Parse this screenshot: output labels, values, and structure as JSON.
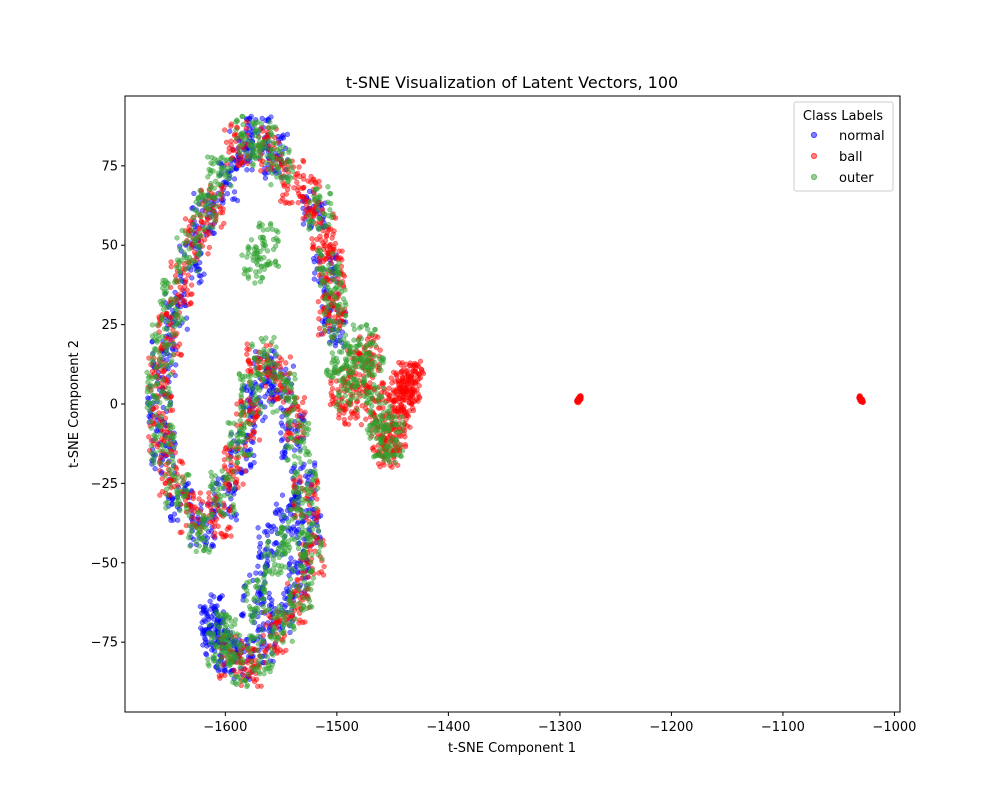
{
  "chart_data": {
    "type": "scatter",
    "title": "t-SNE Visualization of Latent Vectors, 100",
    "xlabel": "t-SNE Component 1",
    "ylabel": "t-SNE Component 2",
    "xlim": [
      -1690,
      -995
    ],
    "ylim": [
      -97,
      97
    ],
    "x_ticks": [
      -1600,
      -1500,
      -1400,
      -1300,
      -1200,
      -1100,
      -1000
    ],
    "y_ticks": [
      -75,
      -50,
      -25,
      0,
      25,
      50,
      75
    ],
    "grid": false,
    "legend": {
      "title": "Class Labels",
      "placement": "top-right"
    },
    "series": [
      {
        "name": "normal",
        "color": "#0000ff",
        "description_points": [
          [
            -1585,
            80
          ],
          [
            -1570,
            84
          ],
          [
            -1555,
            78
          ],
          [
            -1600,
            70
          ],
          [
            -1620,
            60
          ],
          [
            -1630,
            45
          ],
          [
            -1645,
            30
          ],
          [
            -1655,
            15
          ],
          [
            -1660,
            0
          ],
          [
            -1655,
            -15
          ],
          [
            -1640,
            -30
          ],
          [
            -1620,
            -38
          ],
          [
            -1600,
            -30
          ],
          [
            -1585,
            -15
          ],
          [
            -1575,
            0
          ],
          [
            -1565,
            10
          ],
          [
            -1550,
            5
          ],
          [
            -1540,
            -10
          ],
          [
            -1530,
            -25
          ],
          [
            -1525,
            -40
          ],
          [
            -1535,
            -55
          ],
          [
            -1550,
            -65
          ],
          [
            -1565,
            -75
          ],
          [
            -1585,
            -80
          ],
          [
            -1600,
            -78
          ],
          [
            -1610,
            -70
          ],
          [
            -1612,
            -67
          ],
          [
            -1608,
            -72
          ],
          [
            -1520,
            60
          ],
          [
            -1510,
            40
          ],
          [
            -1503,
            25
          ],
          [
            -1560,
            -45
          ],
          [
            -1545,
            -35
          ],
          [
            -1575,
            -60
          ]
        ]
      },
      {
        "name": "ball",
        "color": "#ff0000",
        "description_points": [
          [
            -1590,
            82
          ],
          [
            -1560,
            80
          ],
          [
            -1540,
            70
          ],
          [
            -1525,
            65
          ],
          [
            -1512,
            55
          ],
          [
            -1505,
            45
          ],
          [
            -1503,
            35
          ],
          [
            -1506,
            28
          ],
          [
            -1612,
            62
          ],
          [
            -1625,
            52
          ],
          [
            -1640,
            38
          ],
          [
            -1650,
            22
          ],
          [
            -1658,
            8
          ],
          [
            -1658,
            -8
          ],
          [
            -1648,
            -22
          ],
          [
            -1630,
            -35
          ],
          [
            -1605,
            -35
          ],
          [
            -1590,
            -20
          ],
          [
            -1580,
            -5
          ],
          [
            -1570,
            12
          ],
          [
            -1552,
            8
          ],
          [
            -1538,
            -5
          ],
          [
            -1528,
            -30
          ],
          [
            -1522,
            -48
          ],
          [
            -1535,
            -62
          ],
          [
            -1555,
            -72
          ],
          [
            -1575,
            -82
          ],
          [
            -1595,
            -80
          ],
          [
            -1495,
            5
          ],
          [
            -1488,
            0
          ],
          [
            -1480,
            10
          ],
          [
            -1472,
            15
          ],
          [
            -1466,
            0
          ],
          [
            -1460,
            -10
          ],
          [
            -1454,
            -13
          ],
          [
            -1448,
            -8
          ],
          [
            -1444,
            -2
          ],
          [
            -1441,
            3
          ],
          [
            -1438,
            6
          ],
          [
            -1435,
            7
          ],
          [
            -1433,
            6
          ],
          [
            -1283,
            1.5
          ],
          [
            -1030,
            1.5
          ],
          [
            -1031,
            2
          ],
          [
            -1029,
            1
          ],
          [
            -1284,
            1
          ],
          [
            -1282,
            2
          ]
        ]
      },
      {
        "name": "outer",
        "color": "#2ca02c",
        "description_points": [
          [
            -1580,
            84
          ],
          [
            -1565,
            82
          ],
          [
            -1550,
            76
          ],
          [
            -1605,
            72
          ],
          [
            -1618,
            62
          ],
          [
            -1633,
            48
          ],
          [
            -1648,
            32
          ],
          [
            -1656,
            18
          ],
          [
            -1660,
            3
          ],
          [
            -1656,
            -12
          ],
          [
            -1643,
            -27
          ],
          [
            -1622,
            -40
          ],
          [
            -1603,
            -28
          ],
          [
            -1588,
            -12
          ],
          [
            -1577,
            3
          ],
          [
            -1565,
            14
          ],
          [
            -1548,
            3
          ],
          [
            -1535,
            -12
          ],
          [
            -1528,
            -28
          ],
          [
            -1524,
            -44
          ],
          [
            -1532,
            -58
          ],
          [
            -1548,
            -68
          ],
          [
            -1568,
            -78
          ],
          [
            -1588,
            -82
          ],
          [
            -1605,
            -76
          ],
          [
            -1598,
            -72
          ],
          [
            -1515,
            62
          ],
          [
            -1507,
            42
          ],
          [
            -1502,
            30
          ],
          [
            -1500,
            15
          ],
          [
            -1492,
            5
          ],
          [
            -1483,
            12
          ],
          [
            -1476,
            18
          ],
          [
            -1469,
            8
          ],
          [
            -1463,
            -5
          ],
          [
            -1457,
            -12
          ],
          [
            -1451,
            -10
          ],
          [
            -1556,
            -50
          ],
          [
            -1542,
            -40
          ],
          [
            -1572,
            -62
          ],
          [
            -1562,
            50
          ],
          [
            -1575,
            45
          ]
        ]
      }
    ]
  }
}
